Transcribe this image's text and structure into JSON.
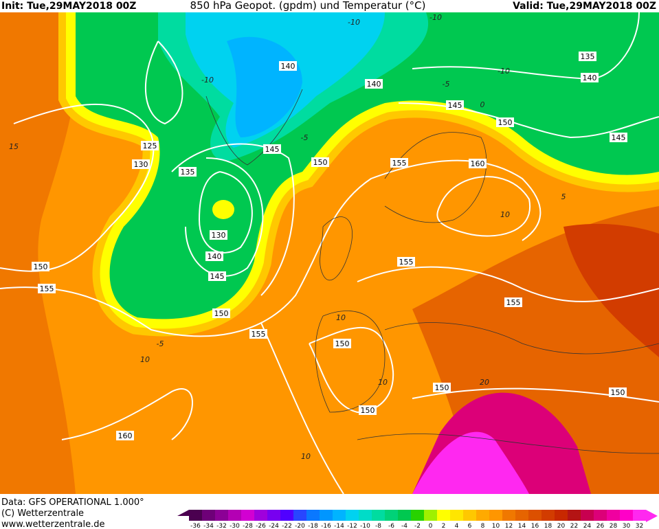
{
  "header": {
    "init": "Init: Tue,29MAY2018 00Z",
    "title": "850 hPa Geopot. (gpdm) und Temperatur (°C)",
    "valid": "Valid: Tue,29MAY2018 00Z"
  },
  "footer": {
    "data": "Data: GFS OPERATIONAL 1.000°",
    "copyright": "(C) Wetterzentrale",
    "url": "www.wetterzentrale.de"
  },
  "legend": {
    "ticks": [
      -36,
      -34,
      -32,
      -30,
      -28,
      -26,
      -24,
      -22,
      -20,
      -18,
      -16,
      -14,
      -12,
      -10,
      -8,
      -6,
      -4,
      -2,
      0,
      2,
      4,
      6,
      8,
      10,
      12,
      14,
      16,
      18,
      20,
      22,
      24,
      26,
      28,
      30,
      32
    ],
    "colors": [
      "#4b0050",
      "#6e0078",
      "#8c0096",
      "#b400b4",
      "#d200d2",
      "#a000dc",
      "#7800f0",
      "#5000ff",
      "#2846ff",
      "#0a78ff",
      "#0096ff",
      "#00b4ff",
      "#00d2f0",
      "#00dcc8",
      "#00dca0",
      "#00d278",
      "#00c850",
      "#28d200",
      "#a0f000",
      "#ffff00",
      "#ffe600",
      "#ffc800",
      "#ffaa00",
      "#ff9600",
      "#f07800",
      "#e66400",
      "#dc5000",
      "#d23c00",
      "#c82800",
      "#b41414",
      "#c80050",
      "#dc0078",
      "#f000a0",
      "#ff00c8",
      "#ff28f0"
    ]
  },
  "map": {
    "geopotential_labels": [
      135,
      140,
      140,
      140,
      145,
      150,
      155,
      160,
      145,
      125,
      130,
      135,
      145,
      150,
      130,
      140,
      145,
      150,
      155,
      150,
      155,
      155,
      150,
      155,
      150,
      150,
      150,
      160
    ],
    "isotherm_labels": [
      -10,
      -10,
      -10,
      -5,
      0,
      -10,
      -5,
      10,
      10,
      -5,
      10,
      10,
      10,
      20,
      5,
      15
    ]
  }
}
